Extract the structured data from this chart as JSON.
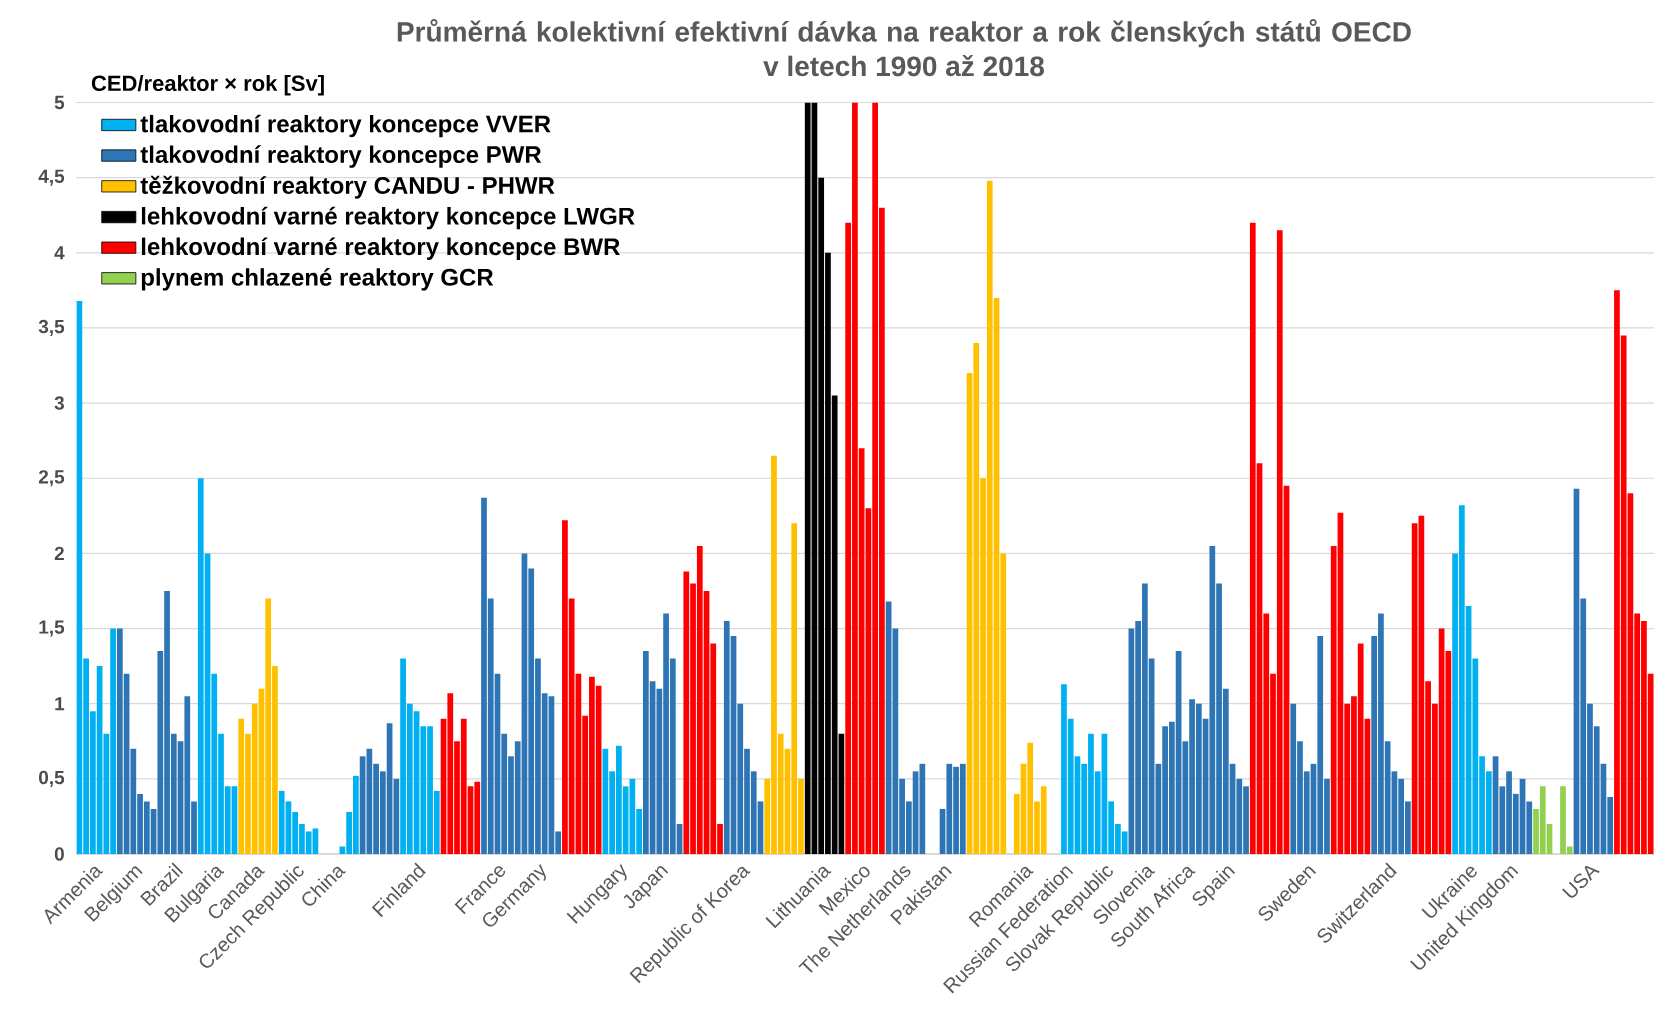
{
  "chart_data": {
    "type": "bar",
    "title": "Průměrná kolektivní efektivní dávka na reaktor a rok členských států OECD",
    "subtitle": "v letech 1990 až 2018",
    "ylabel": "CED/reaktor × rok [Sv]",
    "categories": [
      null,
      null,
      "Armenia",
      null,
      null,
      null,
      null,
      null,
      "Belgium",
      null,
      null,
      null,
      null,
      null,
      "Brazil",
      null,
      null,
      null,
      null,
      null,
      "Bulgaria",
      null,
      null,
      null,
      null,
      null,
      "Canada",
      null,
      null,
      null,
      null,
      null,
      "Czech Republic",
      null,
      null,
      null,
      null,
      null,
      "China",
      null,
      null,
      null,
      null,
      null,
      null,
      null,
      null,
      null,
      null,
      null,
      "Finland",
      null,
      null,
      null,
      null,
      null,
      null,
      null,
      null,
      null,
      null,
      null,
      "France",
      null,
      null,
      null,
      null,
      null,
      "Germany",
      null,
      null,
      null,
      null,
      null,
      null,
      null,
      null,
      null,
      null,
      null,
      "Hungary",
      null,
      null,
      null,
      null,
      null,
      "Japan",
      null,
      null,
      null,
      null,
      null,
      null,
      null,
      null,
      null,
      null,
      null,
      "Republic of Korea",
      null,
      null,
      null,
      null,
      null,
      null,
      null,
      null,
      null,
      null,
      null,
      "Lithuania",
      null,
      null,
      null,
      null,
      null,
      "Mexico",
      null,
      null,
      null,
      null,
      null,
      "The Netherlands",
      null,
      null,
      null,
      null,
      null,
      "Pakistan",
      null,
      null,
      null,
      null,
      null,
      null,
      null,
      null,
      null,
      null,
      null,
      "Romania",
      null,
      null,
      null,
      null,
      null,
      "Russian Federation",
      null,
      null,
      null,
      null,
      null,
      "Slovak Republic",
      null,
      null,
      null,
      null,
      null,
      "Slovenia",
      null,
      null,
      null,
      null,
      null,
      "South Africa",
      null,
      null,
      null,
      null,
      null,
      "Spain",
      null,
      null,
      null,
      null,
      null,
      null,
      null,
      null,
      null,
      null,
      null,
      "Sweden",
      null,
      null,
      null,
      null,
      null,
      null,
      null,
      null,
      null,
      null,
      null,
      "Switzerland",
      null,
      null,
      null,
      null,
      null,
      null,
      null,
      null,
      null,
      null,
      null,
      "Ukraine",
      null,
      null,
      null,
      null,
      null,
      "United Kingdom",
      null,
      null,
      null,
      null,
      null,
      null,
      null,
      null,
      null,
      null,
      null,
      "USA",
      null,
      null,
      null,
      null,
      null,
      null,
      null,
      null,
      null
    ],
    "ylim": [
      0,
      5
    ],
    "yticks": [
      0,
      {
        "value": 0.5,
        "label": "0,5"
      },
      1,
      {
        "value": 1.5,
        "label": "1,5"
      },
      2,
      {
        "value": 2.5,
        "label": "2,5"
      },
      3,
      {
        "value": 3.5,
        "label": "3,5"
      },
      4,
      {
        "value": 4.5,
        "label": "4,5"
      },
      5
    ],
    "grid": "y",
    "legend": "top left",
    "series": [
      {
        "name": "tlakovodní reaktory koncepce VVER",
        "color": "#00b0f0",
        "values": [
          3.68,
          1.3,
          0.95,
          1.25,
          0.8,
          1.5,
          null,
          null,
          null,
          null,
          null,
          null,
          null,
          null,
          null,
          null,
          null,
          null,
          2.5,
          2.0,
          1.2,
          0.8,
          0.45,
          0.45,
          null,
          null,
          null,
          null,
          null,
          null,
          0.42,
          0.35,
          0.28,
          0.2,
          0.15,
          0.17,
          null,
          null,
          null,
          0.05,
          0.28,
          0.52,
          null,
          null,
          null,
          null,
          null,
          null,
          1.3,
          1.0,
          0.95,
          0.85,
          0.85,
          0.42,
          null,
          null,
          null,
          null,
          null,
          null,
          null,
          null,
          null,
          null,
          null,
          null,
          null,
          null,
          null,
          null,
          null,
          null,
          null,
          null,
          null,
          null,
          null,
          null,
          0.7,
          0.55,
          0.72,
          0.45,
          0.5,
          0.3,
          null,
          null,
          null,
          null,
          null,
          null,
          null,
          null,
          null,
          null,
          null,
          null,
          null,
          null,
          null,
          null,
          null,
          null,
          null,
          null,
          null,
          null,
          null,
          null,
          null,
          null,
          null,
          null,
          null,
          null,
          null,
          null,
          null,
          null,
          null,
          null,
          null,
          null,
          null,
          null,
          null,
          null,
          null,
          null,
          null,
          null,
          null,
          null,
          null,
          null,
          null,
          null,
          null,
          null,
          null,
          null,
          null,
          null,
          null,
          null,
          null,
          null,
          1.13,
          0.9,
          0.65,
          0.6,
          0.8,
          0.55,
          0.8,
          0.35,
          0.2,
          0.15,
          null,
          null,
          null,
          null,
          null,
          null,
          null,
          null,
          null,
          null,
          null,
          null,
          null,
          null,
          null,
          null,
          null,
          null,
          null,
          null,
          null,
          null,
          null,
          null,
          null,
          null,
          null,
          null,
          null,
          null,
          null,
          null,
          null,
          null,
          null,
          null,
          null,
          null,
          null,
          null,
          null,
          null,
          null,
          null,
          null,
          null,
          null,
          null,
          2.0,
          2.32,
          1.65,
          1.3,
          0.65,
          0.55,
          null,
          null,
          null,
          null,
          null,
          null,
          null,
          null,
          null,
          null,
          null,
          null,
          null,
          null,
          null,
          null,
          null,
          null,
          null,
          null,
          null,
          null,
          null,
          null
        ]
      },
      {
        "name": "tlakovodní reaktory koncepce PWR",
        "color": "#2e75b6",
        "values": [
          null,
          null,
          null,
          null,
          null,
          null,
          1.5,
          1.2,
          0.7,
          0.4,
          0.35,
          0.3,
          1.35,
          1.75,
          0.8,
          0.75,
          1.05,
          0.35,
          null,
          null,
          null,
          null,
          null,
          null,
          null,
          null,
          null,
          null,
          null,
          null,
          null,
          null,
          null,
          null,
          null,
          null,
          null,
          null,
          null,
          null,
          null,
          null,
          0.65,
          0.7,
          0.6,
          0.55,
          0.87,
          0.5,
          null,
          null,
          null,
          null,
          null,
          null,
          null,
          null,
          null,
          null,
          null,
          null,
          2.37,
          1.7,
          1.2,
          0.8,
          0.65,
          0.75,
          2.0,
          1.9,
          1.3,
          1.07,
          1.05,
          0.15,
          null,
          null,
          null,
          null,
          null,
          null,
          null,
          null,
          null,
          null,
          null,
          null,
          1.35,
          1.15,
          1.1,
          1.6,
          1.3,
          0.2,
          null,
          null,
          null,
          null,
          null,
          null,
          1.55,
          1.45,
          1.0,
          0.7,
          0.55,
          0.35,
          null,
          null,
          null,
          null,
          null,
          null,
          null,
          null,
          null,
          null,
          null,
          null,
          null,
          null,
          null,
          null,
          null,
          null,
          1.68,
          1.5,
          0.5,
          0.35,
          0.55,
          0.6,
          null,
          null,
          0.3,
          0.6,
          0.58,
          0.6,
          null,
          null,
          null,
          null,
          null,
          null,
          null,
          null,
          null,
          null,
          null,
          null,
          null,
          null,
          null,
          null,
          null,
          null,
          null,
          null,
          null,
          null,
          null,
          null,
          1.5,
          1.55,
          1.8,
          1.3,
          0.6,
          0.85,
          0.88,
          1.35,
          0.75,
          1.03,
          1.0,
          0.9,
          2.05,
          1.8,
          1.1,
          0.6,
          0.5,
          0.45,
          null,
          null,
          null,
          null,
          null,
          null,
          1.0,
          0.75,
          0.55,
          0.6,
          1.45,
          0.5,
          null,
          null,
          null,
          null,
          null,
          null,
          1.45,
          1.6,
          0.75,
          0.55,
          0.5,
          0.35,
          null,
          null,
          null,
          null,
          null,
          null,
          null,
          null,
          null,
          null,
          null,
          null,
          0.65,
          0.45,
          0.55,
          0.4,
          0.5,
          0.35,
          null,
          null,
          null,
          null,
          null,
          null,
          2.43,
          1.7,
          1.0,
          0.85,
          0.6,
          0.38,
          null,
          null,
          null,
          null,
          null,
          null
        ]
      },
      {
        "name": "těžkovodní reaktory CANDU - PHWR",
        "color": "#ffc000",
        "values": [
          null,
          null,
          null,
          null,
          null,
          null,
          null,
          null,
          null,
          null,
          null,
          null,
          null,
          null,
          null,
          null,
          null,
          null,
          null,
          null,
          null,
          null,
          null,
          null,
          0.9,
          0.8,
          1.0,
          1.1,
          1.7,
          1.25,
          null,
          null,
          null,
          null,
          null,
          null,
          null,
          null,
          null,
          null,
          null,
          null,
          null,
          null,
          null,
          null,
          null,
          null,
          null,
          null,
          null,
          null,
          null,
          null,
          null,
          null,
          null,
          null,
          null,
          null,
          null,
          null,
          null,
          null,
          null,
          null,
          null,
          null,
          null,
          null,
          null,
          null,
          null,
          null,
          null,
          null,
          null,
          null,
          null,
          null,
          null,
          null,
          null,
          null,
          null,
          null,
          null,
          null,
          null,
          null,
          null,
          null,
          null,
          null,
          null,
          null,
          null,
          null,
          null,
          null,
          null,
          null,
          0.5,
          2.65,
          0.8,
          0.7,
          2.2,
          0.5,
          null,
          null,
          null,
          null,
          null,
          null,
          null,
          null,
          null,
          null,
          null,
          null,
          null,
          null,
          null,
          null,
          null,
          null,
          null,
          null,
          null,
          null,
          null,
          null,
          3.2,
          3.4,
          2.5,
          4.48,
          3.7,
          2.0,
          null,
          0.4,
          0.6,
          0.74,
          0.35,
          0.45,
          null,
          null,
          null,
          null,
          null,
          null,
          null,
          null,
          null,
          null,
          null,
          null,
          null,
          null,
          null,
          null,
          null,
          null,
          null,
          null,
          null,
          null,
          null,
          null,
          null,
          null,
          null,
          null,
          null,
          null,
          null,
          null,
          null,
          null,
          null,
          null,
          null,
          null,
          null,
          null,
          null,
          null,
          null,
          null,
          null,
          null,
          null,
          null,
          null,
          null,
          null,
          null,
          null,
          null,
          null,
          null,
          null,
          null,
          null,
          null,
          null,
          null,
          null,
          null,
          null,
          null,
          null,
          null,
          null,
          null,
          null,
          null,
          null,
          null,
          null,
          null,
          null,
          null,
          null,
          null,
          null,
          null,
          null,
          null,
          null,
          null,
          null,
          null,
          null,
          null
        ]
      },
      {
        "name": "lehkovodní varné reaktory koncepce LWGR",
        "color": "#000000",
        "values": [
          null,
          null,
          null,
          null,
          null,
          null,
          null,
          null,
          null,
          null,
          null,
          null,
          null,
          null,
          null,
          null,
          null,
          null,
          null,
          null,
          null,
          null,
          null,
          null,
          null,
          null,
          null,
          null,
          null,
          null,
          null,
          null,
          null,
          null,
          null,
          null,
          null,
          null,
          null,
          null,
          null,
          null,
          null,
          null,
          null,
          null,
          null,
          null,
          null,
          null,
          null,
          null,
          null,
          null,
          null,
          null,
          null,
          null,
          null,
          null,
          null,
          null,
          null,
          null,
          null,
          null,
          null,
          null,
          null,
          null,
          null,
          null,
          null,
          null,
          null,
          null,
          null,
          null,
          null,
          null,
          null,
          null,
          null,
          null,
          null,
          null,
          null,
          null,
          null,
          null,
          null,
          null,
          null,
          null,
          null,
          null,
          null,
          null,
          null,
          null,
          null,
          null,
          null,
          null,
          null,
          null,
          null,
          null,
          5,
          5,
          4.5,
          4.0,
          3.05,
          0.8,
          null,
          null,
          null,
          null,
          null,
          null,
          null,
          null,
          null,
          null,
          null,
          null,
          null,
          null,
          null,
          null,
          null,
          null,
          null,
          null,
          null,
          null,
          null,
          null,
          null,
          null,
          null,
          null,
          null,
          null,
          null,
          null,
          null,
          null,
          null,
          null,
          null,
          null,
          null,
          null,
          null,
          null,
          null,
          null,
          null,
          null,
          null,
          null,
          null,
          null,
          null,
          null,
          null,
          null,
          null,
          null,
          null,
          null,
          null,
          null,
          null,
          null,
          null,
          null,
          null,
          null,
          null,
          null,
          null,
          null,
          null,
          null,
          null,
          null,
          null,
          null,
          null,
          null,
          null,
          null,
          null,
          null,
          null,
          null,
          null,
          null,
          null,
          null,
          null,
          null,
          null,
          null,
          null,
          null,
          null,
          null,
          null,
          null,
          null,
          null,
          null,
          null,
          null,
          null,
          null,
          null,
          null,
          null,
          null,
          null,
          null,
          null,
          null,
          null,
          null,
          null,
          null,
          null,
          null,
          null
        ]
      },
      {
        "name": "lehkovodní varné reaktory koncepce BWR",
        "color": "#ff0000",
        "values": [
          null,
          null,
          null,
          null,
          null,
          null,
          null,
          null,
          null,
          null,
          null,
          null,
          null,
          null,
          null,
          null,
          null,
          null,
          null,
          null,
          null,
          null,
          null,
          null,
          null,
          null,
          null,
          null,
          null,
          null,
          null,
          null,
          null,
          null,
          null,
          null,
          null,
          null,
          null,
          null,
          null,
          null,
          null,
          null,
          null,
          null,
          null,
          null,
          null,
          null,
          null,
          null,
          null,
          null,
          0.9,
          1.07,
          0.75,
          0.9,
          0.45,
          0.48,
          null,
          null,
          null,
          null,
          null,
          null,
          null,
          null,
          null,
          null,
          null,
          null,
          2.22,
          1.7,
          1.2,
          0.92,
          1.18,
          1.12,
          null,
          null,
          null,
          null,
          null,
          null,
          null,
          null,
          null,
          null,
          null,
          null,
          1.88,
          1.8,
          2.05,
          1.75,
          1.4,
          0.2,
          null,
          null,
          null,
          null,
          null,
          null,
          null,
          null,
          null,
          null,
          null,
          null,
          null,
          null,
          null,
          null,
          null,
          null,
          4.2,
          5,
          2.7,
          2.3,
          5,
          4.3,
          null,
          null,
          null,
          null,
          null,
          null,
          null,
          null,
          null,
          null,
          null,
          null,
          null,
          null,
          null,
          null,
          null,
          null,
          null,
          null,
          null,
          null,
          null,
          null,
          null,
          null,
          null,
          null,
          null,
          null,
          null,
          null,
          null,
          null,
          null,
          null,
          null,
          null,
          null,
          null,
          null,
          null,
          null,
          null,
          null,
          null,
          null,
          null,
          null,
          null,
          null,
          null,
          null,
          null,
          4.2,
          2.6,
          1.6,
          1.2,
          4.15,
          2.45,
          null,
          null,
          null,
          null,
          null,
          null,
          2.05,
          2.27,
          1.0,
          1.05,
          1.4,
          0.9,
          null,
          null,
          null,
          null,
          null,
          null,
          2.2,
          2.25,
          1.15,
          1.0,
          1.5,
          1.35,
          null,
          null,
          null,
          null,
          null,
          null,
          null,
          null,
          null,
          null,
          null,
          null,
          null,
          null,
          null,
          null,
          null,
          null,
          null,
          null,
          null,
          null,
          null,
          null,
          3.75,
          3.45,
          2.4,
          1.6,
          1.55,
          1.2
        ]
      },
      {
        "name": "plynem chlazené reaktory GCR",
        "color": "#92d050",
        "values": [
          null,
          null,
          null,
          null,
          null,
          null,
          null,
          null,
          null,
          null,
          null,
          null,
          null,
          null,
          null,
          null,
          null,
          null,
          null,
          null,
          null,
          null,
          null,
          null,
          null,
          null,
          null,
          null,
          null,
          null,
          null,
          null,
          null,
          null,
          null,
          null,
          null,
          null,
          null,
          null,
          null,
          null,
          null,
          null,
          null,
          null,
          null,
          null,
          null,
          null,
          null,
          null,
          null,
          null,
          null,
          null,
          null,
          null,
          null,
          null,
          null,
          null,
          null,
          null,
          null,
          null,
          null,
          null,
          null,
          null,
          null,
          null,
          null,
          null,
          null,
          null,
          null,
          null,
          null,
          null,
          null,
          null,
          null,
          null,
          null,
          null,
          null,
          null,
          null,
          null,
          null,
          null,
          null,
          null,
          null,
          null,
          null,
          null,
          null,
          null,
          null,
          null,
          null,
          null,
          null,
          null,
          null,
          null,
          null,
          null,
          null,
          null,
          null,
          null,
          null,
          null,
          null,
          null,
          null,
          null,
          null,
          null,
          null,
          null,
          null,
          null,
          null,
          null,
          null,
          null,
          null,
          null,
          null,
          null,
          null,
          null,
          null,
          null,
          null,
          null,
          null,
          null,
          null,
          null,
          null,
          null,
          null,
          null,
          null,
          null,
          null,
          null,
          null,
          null,
          null,
          null,
          null,
          null,
          null,
          null,
          null,
          null,
          null,
          null,
          null,
          null,
          null,
          null,
          null,
          null,
          null,
          null,
          null,
          null,
          null,
          null,
          null,
          null,
          null,
          null,
          null,
          null,
          null,
          null,
          null,
          null,
          null,
          null,
          null,
          null,
          null,
          null,
          null,
          null,
          null,
          null,
          null,
          null,
          null,
          null,
          null,
          null,
          null,
          null,
          null,
          null,
          null,
          null,
          null,
          null,
          null,
          null,
          null,
          null,
          null,
          null,
          0.3,
          0.45,
          0.2,
          null,
          0.45,
          0.05,
          null,
          null,
          null,
          null,
          null,
          null,
          null,
          null,
          null,
          null,
          null,
          null
        ]
      }
    ]
  }
}
